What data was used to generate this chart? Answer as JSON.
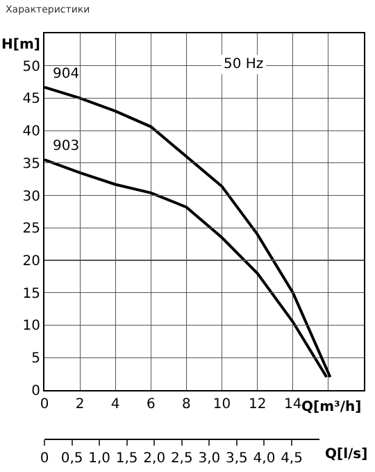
{
  "chart_data": {
    "type": "line",
    "title": "Характеристики",
    "ylabel": "H[m]",
    "xlabel": "Q[m³/h]",
    "x2label": "Q[l/s]",
    "annotations": [
      "50 Hz"
    ],
    "xlim": [
      0,
      18
    ],
    "xticks": [
      0,
      2,
      4,
      6,
      8,
      10,
      12,
      14,
      {
        "value": 16,
        "label": null
      }
    ],
    "ylim": [
      0,
      55
    ],
    "yticks": [
      0,
      5,
      10,
      15,
      20,
      25,
      30,
      35,
      40,
      45,
      50
    ],
    "x2lim": [
      0,
      5
    ],
    "x2ticks": [
      0,
      {
        "value": 0.5,
        "label": "0,5"
      },
      {
        "value": 1,
        "label": "1,0"
      },
      {
        "value": 1.5,
        "label": "1,5"
      },
      {
        "value": 2,
        "label": "2,0"
      },
      {
        "value": 2.5,
        "label": "2,5"
      },
      {
        "value": 3,
        "label": "3,0"
      },
      {
        "value": 3.5,
        "label": "3,5"
      },
      {
        "value": 4,
        "label": "4,0"
      },
      {
        "value": 4.5,
        "label": "4,5"
      }
    ],
    "grid": true,
    "legend": false,
    "marker": "none",
    "line_style": "solid",
    "series": [
      {
        "name": "904",
        "color": "#000000",
        "x": [
          0,
          2,
          4,
          6,
          8,
          10,
          12,
          14,
          16.1
        ],
        "values": [
          46.7,
          45,
          43,
          40.6,
          36,
          31.4,
          24,
          15,
          2
        ]
      },
      {
        "name": "903",
        "color": "#000000",
        "x": [
          0,
          2,
          4,
          6,
          8,
          10,
          12,
          14,
          15.9
        ],
        "values": [
          35.5,
          33.5,
          31.7,
          30.4,
          28.2,
          23.5,
          18,
          10.5,
          2
        ]
      }
    ]
  }
}
